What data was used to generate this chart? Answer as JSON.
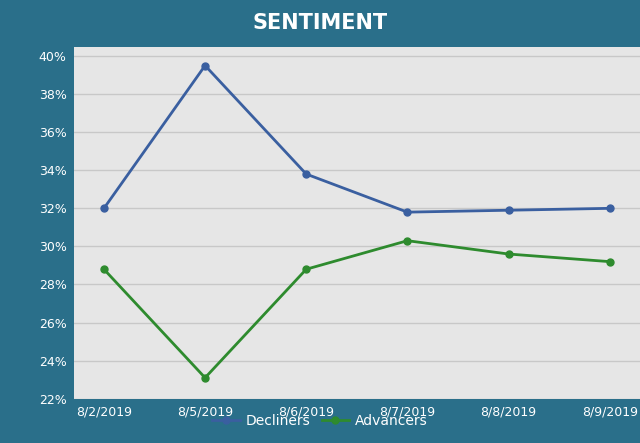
{
  "title": "SENTIMENT",
  "title_color": "#ffffff",
  "bg_color": "#2a6f8a",
  "plot_bg_color": "#e6e6e6",
  "grid_color": "#c8c8c8",
  "x_labels": [
    "8/2/2019",
    "8/5/2019",
    "8/6/2019",
    "8/7/2019",
    "8/8/2019",
    "8/9/2019"
  ],
  "decliners": [
    0.32,
    0.395,
    0.338,
    0.318,
    0.319,
    0.32
  ],
  "advancers": [
    0.288,
    0.231,
    0.288,
    0.303,
    0.296,
    0.292
  ],
  "decliners_color": "#3a5fa0",
  "advancers_color": "#2e8b2e",
  "ylim_min": 0.22,
  "ylim_max": 0.405,
  "yticks": [
    0.22,
    0.24,
    0.26,
    0.28,
    0.3,
    0.32,
    0.34,
    0.36,
    0.38,
    0.4
  ],
  "marker_size": 5,
  "line_width": 2,
  "tick_label_color": "#ffffff",
  "title_fontsize": 15,
  "tick_fontsize": 9,
  "legend_fontsize": 10
}
